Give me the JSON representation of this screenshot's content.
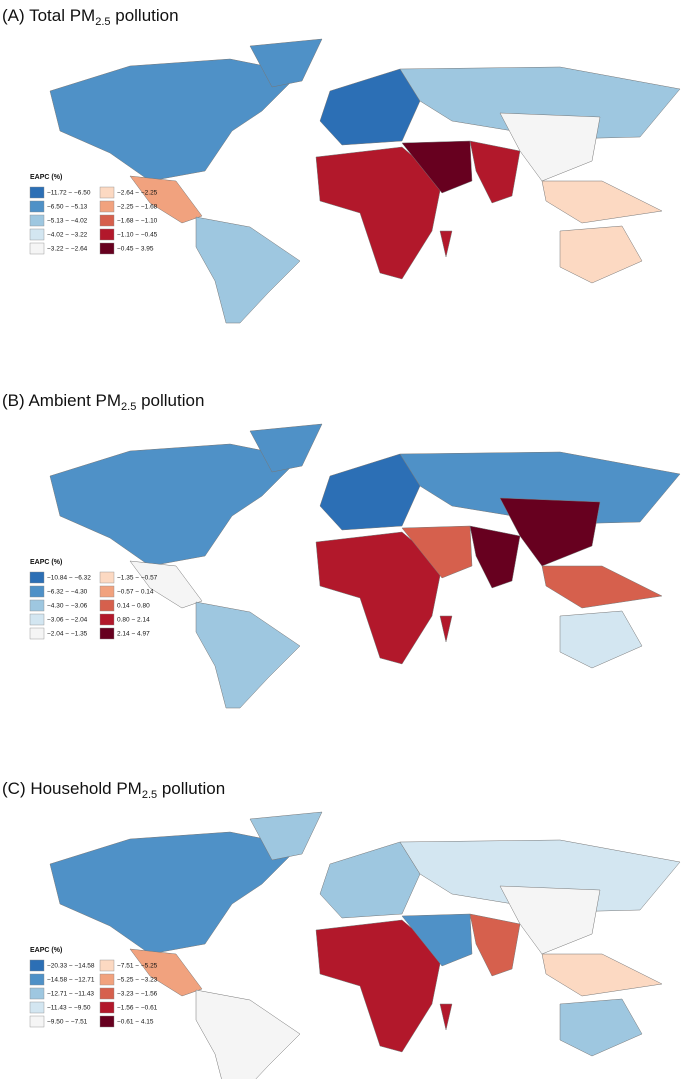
{
  "panels": [
    {
      "title": {
        "prefix": "(A) Total PM",
        "subscript": "2.5",
        "suffix": " pollution"
      },
      "legend": {
        "title": "EAPC (%)",
        "items": [
          {
            "label": "−11.72 − −6.50",
            "color": "#2c6fb5"
          },
          {
            "label": "−6.50 − −5.13",
            "color": "#4f91c7"
          },
          {
            "label": "−5.13 − −4.02",
            "color": "#9ec7e0"
          },
          {
            "label": "−4.02 − −3.22",
            "color": "#d3e6f1"
          },
          {
            "label": "−3.22 − −2.64",
            "color": "#f5f5f5"
          },
          {
            "label": "−2.64 − −2.25",
            "color": "#fcd9c2"
          },
          {
            "label": "−2.25 − −1.68",
            "color": "#f1a27e"
          },
          {
            "label": "−1.68 − −1.10",
            "color": "#d6604d"
          },
          {
            "label": "−1.10 − −0.45",
            "color": "#b2182b"
          },
          {
            "label": "−0.45 − 3.95",
            "color": "#67001f"
          }
        ]
      }
    },
    {
      "title": {
        "prefix": "(B) Ambient PM",
        "subscript": "2.5",
        "suffix": " pollution"
      },
      "legend": {
        "title": "EAPC (%)",
        "items": [
          {
            "label": "−10.84 − −6.32",
            "color": "#2c6fb5"
          },
          {
            "label": "−6.32 − −4.30",
            "color": "#4f91c7"
          },
          {
            "label": "−4.30 − −3.06",
            "color": "#9ec7e0"
          },
          {
            "label": "−3.06 − −2.04",
            "color": "#d3e6f1"
          },
          {
            "label": "−2.04 − −1.35",
            "color": "#f5f5f5"
          },
          {
            "label": "−1.35 − −0.57",
            "color": "#fcd9c2"
          },
          {
            "label": "−0.57 − 0.14",
            "color": "#f1a27e"
          },
          {
            "label": "0.14 − 0.80",
            "color": "#d6604d"
          },
          {
            "label": "0.80 − 2.14",
            "color": "#b2182b"
          },
          {
            "label": "2.14 − 4.97",
            "color": "#67001f"
          }
        ]
      }
    },
    {
      "title": {
        "prefix": "(C) Household PM",
        "subscript": "2.5",
        "suffix": " pollution"
      },
      "legend": {
        "title": "EAPC (%)",
        "items": [
          {
            "label": "−20.33 − −14.58",
            "color": "#2c6fb5"
          },
          {
            "label": "−14.58 − −12.71",
            "color": "#4f91c7"
          },
          {
            "label": "−12.71 − −11.43",
            "color": "#9ec7e0"
          },
          {
            "label": "−11.43 − −9.50",
            "color": "#d3e6f1"
          },
          {
            "label": "−9.50 − −7.51",
            "color": "#f5f5f5"
          },
          {
            "label": "−7.51 − −5.25",
            "color": "#fcd9c2"
          },
          {
            "label": "−5.25 − −3.23",
            "color": "#f1a27e"
          },
          {
            "label": "−3.23 − −1.56",
            "color": "#d6604d"
          },
          {
            "label": "−1.56 − −0.61",
            "color": "#b2182b"
          },
          {
            "label": "−0.61 − 4.15",
            "color": "#67001f"
          }
        ]
      }
    }
  ]
}
